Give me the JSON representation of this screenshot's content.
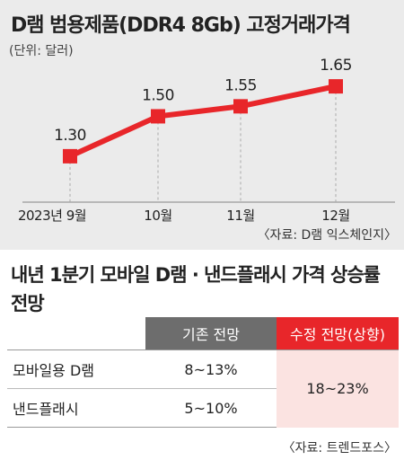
{
  "chart_data": {
    "type": "line",
    "title": "D램 범용제품(DDR4 8Gb) 고정거래가격",
    "unit_note": "(단위: 달러)",
    "categories": [
      "2023년 9월",
      "10월",
      "11월",
      "12월"
    ],
    "series": [
      {
        "values": [
          1.3,
          1.5,
          1.55,
          1.65
        ]
      }
    ],
    "value_labels": [
      "1.30",
      "1.50",
      "1.55",
      "1.65"
    ],
    "source": "〈자료: D램 익스체인지〉",
    "line_color": "#e8262a"
  },
  "table": {
    "title": "내년 1분기 모바일 D램 · 낸드플래시 가격 상승률 전망",
    "headers": [
      "기존 전망",
      "수정 전망(상향)"
    ],
    "rows": [
      {
        "label": "모바일용 D램",
        "base": "8~13%"
      },
      {
        "label": "낸드플래시",
        "base": "5~10%"
      }
    ],
    "revised_merged": "18~23%",
    "source": "〈자료: 트렌드포스〉",
    "header_base_color": "#6d6d6d",
    "header_revised_color": "#e8262a"
  }
}
